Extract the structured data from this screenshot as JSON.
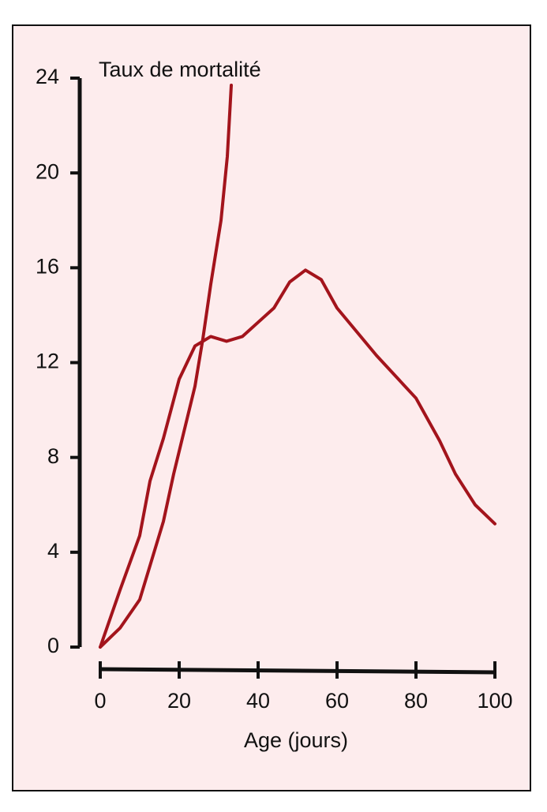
{
  "chart_data": {
    "type": "line",
    "y_label": "Taux de mortalité",
    "x_label": "Age (jours)",
    "xlim": [
      0,
      100
    ],
    "xticks": [
      0,
      20,
      40,
      60,
      80,
      100
    ],
    "ylim": [
      0,
      24
    ],
    "yticks": [
      0,
      4,
      8,
      12,
      16,
      20,
      24
    ],
    "series": [
      {
        "color": "#a3141c",
        "x": [
          0,
          5,
          10,
          16,
          18.6,
          24,
          26,
          28,
          30.6,
          32.2,
          33.2
        ],
        "values": [
          0,
          0.8,
          2,
          5.3,
          7.3,
          11,
          13,
          15.3,
          18,
          20.7,
          23.7
        ]
      },
      {
        "color": "#a3141c",
        "x": [
          0,
          5,
          10,
          12.6,
          16,
          20,
          24,
          28,
          32,
          36,
          40,
          44,
          48,
          52,
          56,
          60,
          70,
          80,
          86,
          90,
          95,
          100
        ],
        "values": [
          0,
          2.4,
          4.7,
          7,
          8.8,
          11.3,
          12.7,
          13.1,
          12.9,
          13.1,
          13.7,
          14.3,
          15.4,
          15.9,
          15.5,
          14.3,
          12.3,
          10.5,
          8.7,
          7.3,
          6,
          5.2
        ]
      }
    ]
  }
}
